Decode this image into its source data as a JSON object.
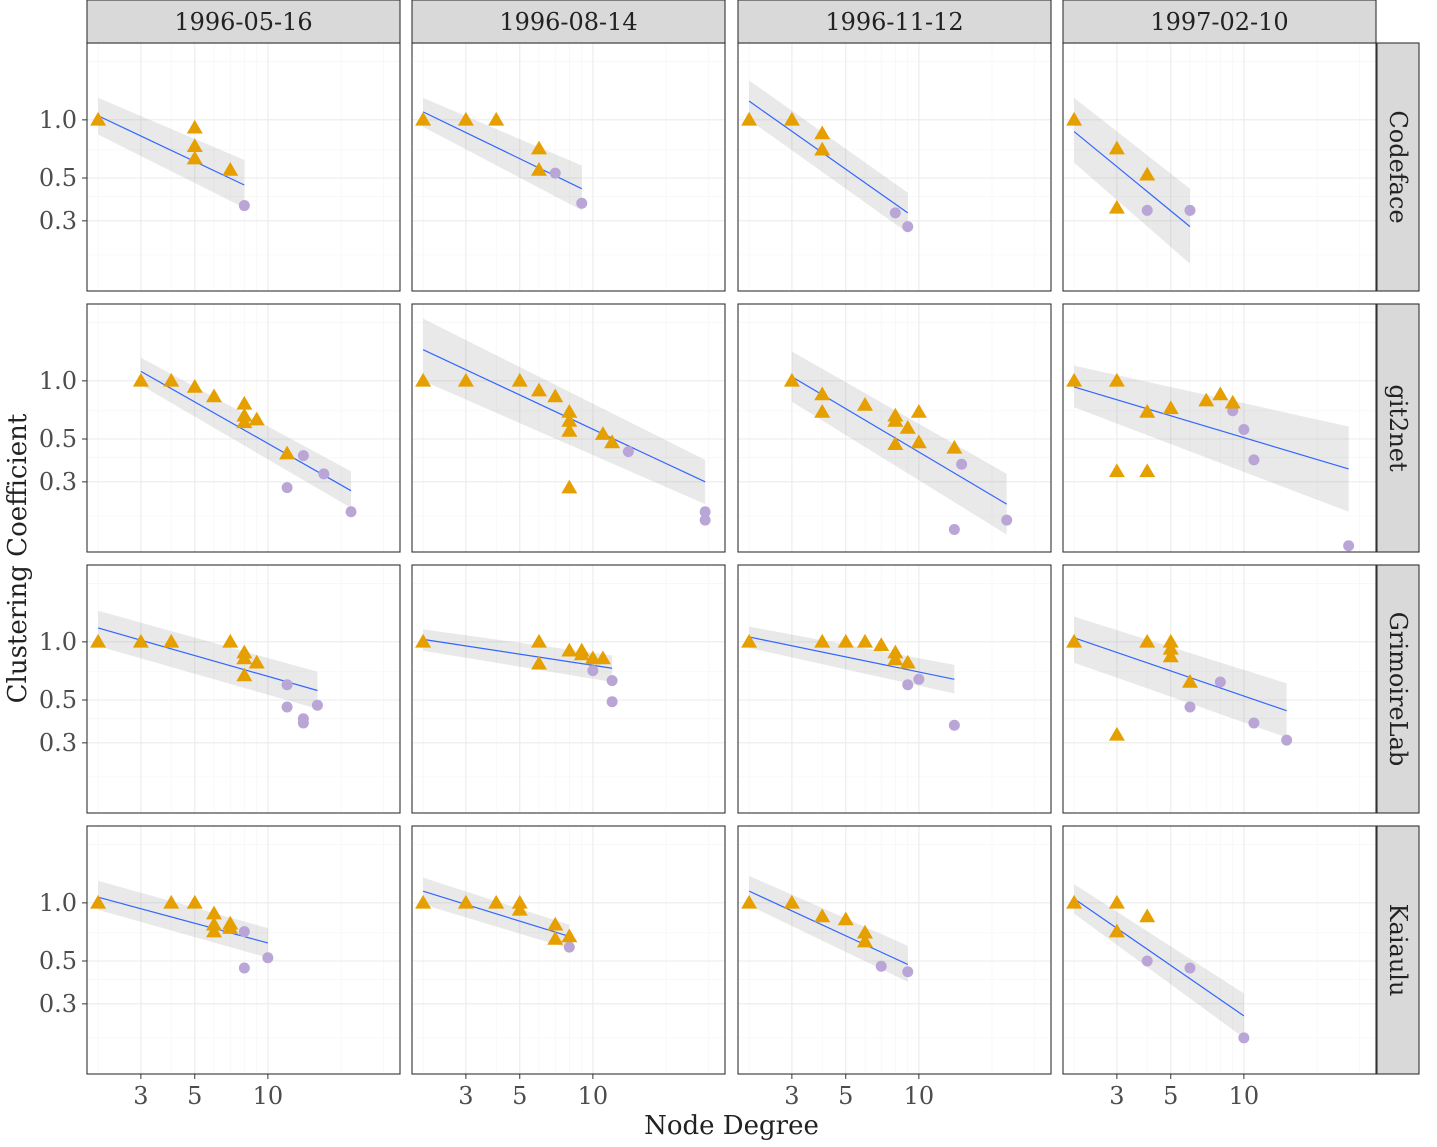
{
  "chart_data": {
    "type": "scatter",
    "layout": "facet_grid",
    "xlabel": "Node Degree",
    "ylabel": "Clustering Coefficient",
    "x_scale": "log10",
    "y_scale": "log10",
    "x_range": [
      1.8,
      35
    ],
    "y_range": [
      0.13,
      2.5
    ],
    "x_ticks": [
      3,
      5,
      10
    ],
    "x_tick_labels": [
      "3",
      "5",
      "10"
    ],
    "y_ticks": [
      0.3,
      0.5,
      1.0
    ],
    "y_tick_labels": [
      "0.3",
      "0.5",
      "1.0"
    ],
    "column_labels": [
      "1996-05-16",
      "1996-08-14",
      "1996-11-12",
      "1997-02-10"
    ],
    "row_labels": [
      "Codeface",
      "git2net",
      "GrimoireLab",
      "Kaiaulu"
    ],
    "colors": {
      "triangle": "#E69F00",
      "circle": "#b9a6d6",
      "fit_line": "#3366ff",
      "band": "#999999"
    },
    "panels": [
      {
        "row": 0,
        "col": 0,
        "triangles": [
          [
            2,
            1.0
          ],
          [
            5,
            0.91
          ],
          [
            5,
            0.73
          ],
          [
            5,
            0.63
          ],
          [
            7,
            0.55
          ]
        ],
        "circles": [
          [
            8,
            0.36
          ]
        ],
        "fit": [
          [
            2,
            1.05
          ],
          [
            8,
            0.46
          ]
        ],
        "band_lo": [
          0.84,
          0.35
        ],
        "band_hi": [
          1.3,
          0.62
        ]
      },
      {
        "row": 0,
        "col": 1,
        "triangles": [
          [
            2,
            1.0
          ],
          [
            3,
            1.0
          ],
          [
            4,
            1.0
          ],
          [
            6,
            0.71
          ],
          [
            6,
            0.55
          ]
        ],
        "circles": [
          [
            7,
            0.53
          ],
          [
            9,
            0.37
          ]
        ],
        "fit": [
          [
            2,
            1.1
          ],
          [
            9,
            0.44
          ]
        ],
        "band_lo": [
          0.92,
          0.34
        ],
        "band_hi": [
          1.3,
          0.58
        ]
      },
      {
        "row": 0,
        "col": 2,
        "triangles": [
          [
            2,
            1.0
          ],
          [
            3,
            1.0
          ],
          [
            4,
            0.85
          ],
          [
            4,
            0.7
          ]
        ],
        "circles": [
          [
            8,
            0.33
          ],
          [
            9,
            0.28
          ]
        ],
        "fit": [
          [
            2,
            1.25
          ],
          [
            9,
            0.33
          ]
        ],
        "band_lo": [
          1.0,
          0.26
        ],
        "band_hi": [
          1.6,
          0.42
        ]
      },
      {
        "row": 0,
        "col": 3,
        "triangles": [
          [
            2,
            1.0
          ],
          [
            3,
            0.71
          ],
          [
            3,
            0.35
          ],
          [
            4,
            0.52
          ]
        ],
        "circles": [
          [
            4,
            0.34
          ],
          [
            6,
            0.34
          ]
        ],
        "fit": [
          [
            2,
            0.87
          ],
          [
            6,
            0.28
          ]
        ],
        "band_lo": [
          0.6,
          0.18
        ],
        "band_hi": [
          1.3,
          0.44
        ]
      },
      {
        "row": 1,
        "col": 0,
        "triangles": [
          [
            3,
            1.0
          ],
          [
            4,
            1.0
          ],
          [
            5,
            0.93
          ],
          [
            6,
            0.83
          ],
          [
            8,
            0.76
          ],
          [
            8,
            0.66
          ],
          [
            8,
            0.61
          ],
          [
            9,
            0.63
          ],
          [
            12,
            0.42
          ]
        ],
        "circles": [
          [
            12,
            0.28
          ],
          [
            14,
            0.41
          ],
          [
            17,
            0.33
          ],
          [
            22,
            0.21
          ]
        ],
        "fit": [
          [
            3,
            1.12
          ],
          [
            22,
            0.27
          ]
        ],
        "band_lo": [
          0.95,
          0.22
        ],
        "band_hi": [
          1.32,
          0.34
        ]
      },
      {
        "row": 1,
        "col": 1,
        "triangles": [
          [
            2,
            1.0
          ],
          [
            3,
            1.0
          ],
          [
            5,
            1.0
          ],
          [
            6,
            0.89
          ],
          [
            7,
            0.83
          ],
          [
            8,
            0.69
          ],
          [
            8,
            0.62
          ],
          [
            8,
            0.55
          ],
          [
            8,
            0.28
          ],
          [
            11,
            0.53
          ],
          [
            12,
            0.48
          ]
        ],
        "circles": [
          [
            14,
            0.43
          ],
          [
            29,
            0.21
          ],
          [
            29,
            0.19
          ]
        ],
        "fit": [
          [
            2,
            1.45
          ],
          [
            29,
            0.3
          ]
        ],
        "band_lo": [
          1.0,
          0.23
        ],
        "band_hi": [
          2.1,
          0.39
        ]
      },
      {
        "row": 1,
        "col": 2,
        "triangles": [
          [
            3,
            1.0
          ],
          [
            4,
            0.85
          ],
          [
            4,
            0.69
          ],
          [
            6,
            0.75
          ],
          [
            8,
            0.66
          ],
          [
            8,
            0.62
          ],
          [
            8,
            0.47
          ],
          [
            9,
            0.57
          ],
          [
            10,
            0.69
          ],
          [
            10,
            0.48
          ],
          [
            14,
            0.45
          ]
        ],
        "circles": [
          [
            15,
            0.37
          ],
          [
            14,
            0.17
          ],
          [
            23,
            0.19
          ]
        ],
        "fit": [
          [
            3,
            1.05
          ],
          [
            23,
            0.23
          ]
        ],
        "band_lo": [
          0.78,
          0.16
        ],
        "band_hi": [
          1.42,
          0.33
        ]
      },
      {
        "row": 1,
        "col": 3,
        "triangles": [
          [
            2,
            1.0
          ],
          [
            3,
            1.0
          ],
          [
            4,
            0.69
          ],
          [
            5,
            0.72
          ],
          [
            7,
            0.79
          ],
          [
            8,
            0.85
          ],
          [
            9,
            0.77
          ],
          [
            3,
            0.34
          ],
          [
            4,
            0.34
          ]
        ],
        "circles": [
          [
            9,
            0.7
          ],
          [
            10,
            0.56
          ],
          [
            11,
            0.39
          ],
          [
            27,
            0.14
          ]
        ],
        "fit": [
          [
            2,
            0.93
          ],
          [
            27,
            0.35
          ]
        ],
        "band_lo": [
          0.73,
          0.21
        ],
        "band_hi": [
          1.2,
          0.58
        ]
      },
      {
        "row": 2,
        "col": 0,
        "triangles": [
          [
            2,
            1.0
          ],
          [
            3,
            1.0
          ],
          [
            4,
            1.0
          ],
          [
            7,
            1.0
          ],
          [
            8,
            0.88
          ],
          [
            8,
            0.82
          ],
          [
            9,
            0.78
          ],
          [
            8,
            0.67
          ]
        ],
        "circles": [
          [
            12,
            0.6
          ],
          [
            12,
            0.46
          ],
          [
            14,
            0.4
          ],
          [
            14,
            0.38
          ],
          [
            16,
            0.47
          ]
        ],
        "fit": [
          [
            2,
            1.18
          ],
          [
            16,
            0.56
          ]
        ],
        "band_lo": [
          0.95,
          0.45
        ],
        "band_hi": [
          1.45,
          0.7
        ]
      },
      {
        "row": 2,
        "col": 1,
        "triangles": [
          [
            2,
            1.0
          ],
          [
            6,
            1.0
          ],
          [
            6,
            0.77
          ],
          [
            8,
            0.9
          ],
          [
            9,
            0.9
          ],
          [
            9,
            0.86
          ],
          [
            10,
            0.82
          ],
          [
            11,
            0.82
          ]
        ],
        "circles": [
          [
            10,
            0.71
          ],
          [
            12,
            0.63
          ],
          [
            12,
            0.49
          ]
        ],
        "fit": [
          [
            2,
            1.03
          ],
          [
            12,
            0.73
          ]
        ],
        "band_lo": [
          0.9,
          0.62
        ],
        "band_hi": [
          1.16,
          0.85
        ]
      },
      {
        "row": 2,
        "col": 2,
        "triangles": [
          [
            2,
            1.0
          ],
          [
            4,
            1.0
          ],
          [
            5,
            1.0
          ],
          [
            6,
            1.0
          ],
          [
            7,
            0.96
          ],
          [
            8,
            0.88
          ],
          [
            8,
            0.81
          ],
          [
            9,
            0.78
          ]
        ],
        "circles": [
          [
            9,
            0.6
          ],
          [
            10,
            0.64
          ],
          [
            14,
            0.37
          ]
        ],
        "fit": [
          [
            2,
            1.06
          ],
          [
            14,
            0.64
          ]
        ],
        "band_lo": [
          0.93,
          0.54
        ],
        "band_hi": [
          1.2,
          0.76
        ]
      },
      {
        "row": 2,
        "col": 3,
        "triangles": [
          [
            2,
            1.0
          ],
          [
            4,
            1.0
          ],
          [
            5,
            1.0
          ],
          [
            5,
            0.92
          ],
          [
            5,
            0.84
          ],
          [
            6,
            0.62
          ],
          [
            3,
            0.33
          ]
        ],
        "circles": [
          [
            6,
            0.46
          ],
          [
            8,
            0.62
          ],
          [
            11,
            0.38
          ],
          [
            15,
            0.31
          ]
        ],
        "fit": [
          [
            2,
            1.05
          ],
          [
            15,
            0.44
          ]
        ],
        "band_lo": [
          0.78,
          0.32
        ],
        "band_hi": [
          1.35,
          0.61
        ]
      },
      {
        "row": 3,
        "col": 0,
        "triangles": [
          [
            2,
            1.0
          ],
          [
            4,
            1.0
          ],
          [
            5,
            1.0
          ],
          [
            6,
            0.88
          ],
          [
            6,
            0.77
          ],
          [
            6,
            0.71
          ],
          [
            7,
            0.78
          ],
          [
            7,
            0.74
          ]
        ],
        "circles": [
          [
            8,
            0.71
          ],
          [
            8,
            0.46
          ],
          [
            10,
            0.52
          ]
        ],
        "fit": [
          [
            2,
            1.07
          ],
          [
            10,
            0.62
          ]
        ],
        "band_lo": [
          0.92,
          0.52
        ],
        "band_hi": [
          1.3,
          0.74
        ]
      },
      {
        "row": 3,
        "col": 1,
        "triangles": [
          [
            2,
            1.0
          ],
          [
            3,
            1.0
          ],
          [
            4,
            1.0
          ],
          [
            5,
            1.0
          ],
          [
            5,
            0.92
          ],
          [
            7,
            0.77
          ],
          [
            7,
            0.65
          ],
          [
            8,
            0.67
          ]
        ],
        "circles": [
          [
            8,
            0.59
          ]
        ],
        "fit": [
          [
            2,
            1.15
          ],
          [
            8,
            0.67
          ]
        ],
        "band_lo": [
          0.98,
          0.58
        ],
        "band_hi": [
          1.35,
          0.77
        ]
      },
      {
        "row": 3,
        "col": 2,
        "triangles": [
          [
            2,
            1.0
          ],
          [
            3,
            1.0
          ],
          [
            4,
            0.85
          ],
          [
            5,
            0.82
          ],
          [
            6,
            0.7
          ],
          [
            6,
            0.63
          ]
        ],
        "circles": [
          [
            7,
            0.47
          ],
          [
            9,
            0.44
          ]
        ],
        "fit": [
          [
            2,
            1.15
          ],
          [
            9,
            0.48
          ]
        ],
        "band_lo": [
          0.97,
          0.39
        ],
        "band_hi": [
          1.38,
          0.6
        ]
      },
      {
        "row": 3,
        "col": 3,
        "triangles": [
          [
            2,
            1.0
          ],
          [
            3,
            1.0
          ],
          [
            3,
            0.71
          ],
          [
            4,
            0.85
          ]
        ],
        "circles": [
          [
            4,
            0.5
          ],
          [
            6,
            0.46
          ],
          [
            10,
            0.2
          ]
        ],
        "fit": [
          [
            2,
            1.05
          ],
          [
            10,
            0.26
          ]
        ],
        "band_lo": [
          0.88,
          0.2
        ],
        "band_hi": [
          1.25,
          0.34
        ]
      }
    ]
  }
}
